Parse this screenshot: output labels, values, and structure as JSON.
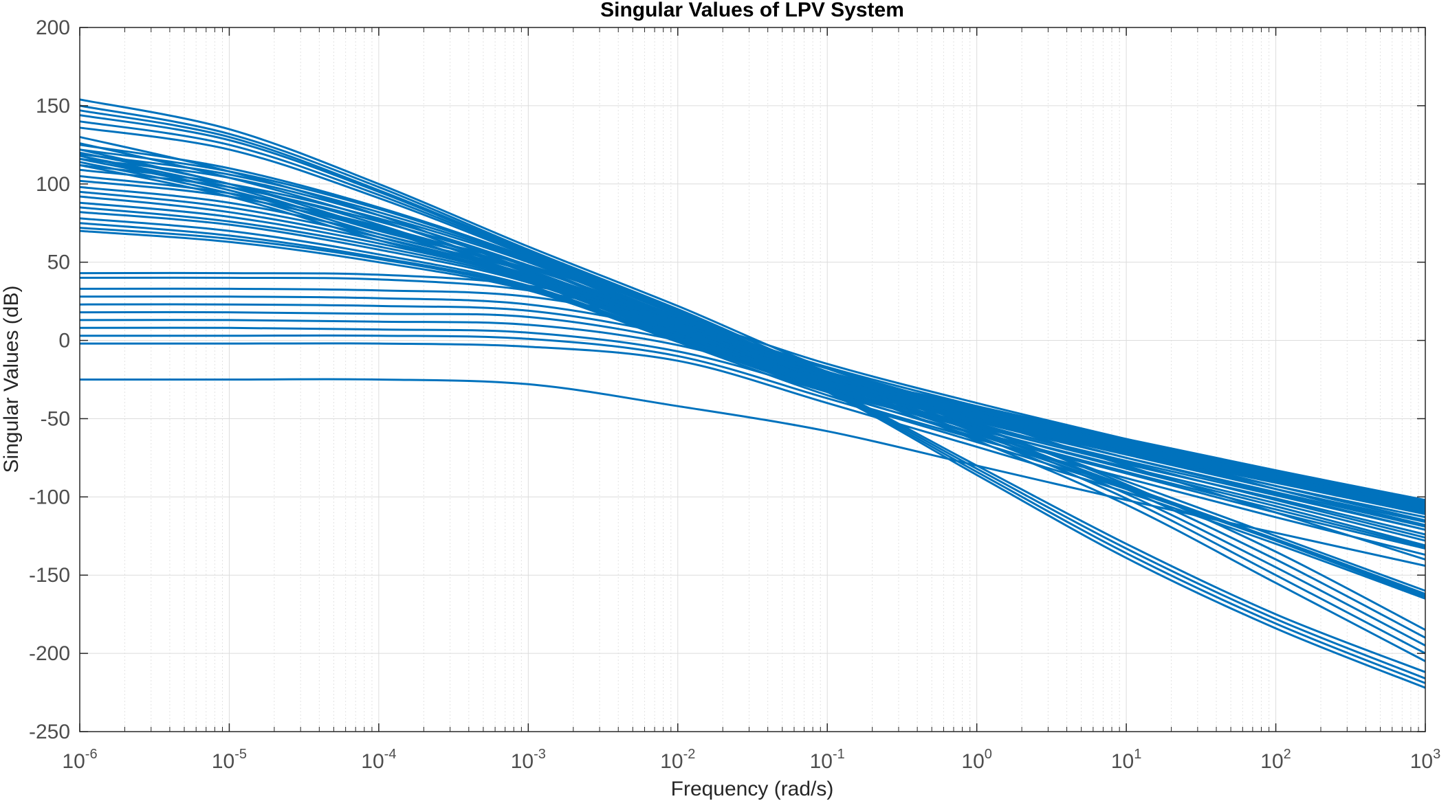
{
  "chart_data": {
    "type": "line",
    "title": "Singular Values of LPV System",
    "xlabel": "Frequency (rad/s)",
    "ylabel": "Singular Values (dB)",
    "xscale": "log",
    "xlim": [
      1e-06,
      1000
    ],
    "ylim": [
      -250,
      200
    ],
    "grid": true,
    "minor_grid": true,
    "line_color": "#0072BD",
    "x_ticks": [
      {
        "base": "10",
        "exp": "-6",
        "value": 1e-06
      },
      {
        "base": "10",
        "exp": "-5",
        "value": 1e-05
      },
      {
        "base": "10",
        "exp": "-4",
        "value": 0.0001
      },
      {
        "base": "10",
        "exp": "-3",
        "value": 0.001
      },
      {
        "base": "10",
        "exp": "-2",
        "value": 0.01
      },
      {
        "base": "10",
        "exp": "-1",
        "value": 0.1
      },
      {
        "base": "10",
        "exp": "0",
        "value": 1
      },
      {
        "base": "10",
        "exp": "1",
        "value": 10
      },
      {
        "base": "10",
        "exp": "2",
        "value": 100
      },
      {
        "base": "10",
        "exp": "3",
        "value": 1000
      }
    ],
    "y_ticks": [
      200,
      150,
      100,
      50,
      0,
      -50,
      -100,
      -150,
      -200,
      -250
    ],
    "x_sample": [
      1e-06,
      1e-05,
      0.0001,
      0.001,
      0.01,
      0.1,
      1,
      10,
      100,
      1000
    ],
    "series": [
      {
        "values": [
          154,
          135,
          100,
          60,
          22,
          -18,
          -45,
          -70,
          -93,
          -115
        ]
      },
      {
        "values": [
          150,
          132,
          98,
          58,
          20,
          -20,
          -47,
          -72,
          -95,
          -118
        ]
      },
      {
        "values": [
          147,
          130,
          96,
          57,
          19,
          -22,
          -50,
          -75,
          -98,
          -121
        ]
      },
      {
        "values": [
          144,
          128,
          95,
          56,
          18,
          -24,
          -53,
          -78,
          -102,
          -126
        ]
      },
      {
        "values": [
          140,
          125,
          93,
          55,
          17,
          -25,
          -56,
          -82,
          -106,
          -131
        ]
      },
      {
        "values": [
          136,
          122,
          91,
          54,
          16,
          -26,
          -58,
          -84,
          -108,
          -132
        ]
      },
      {
        "values": [
          125,
          110,
          85,
          53,
          15,
          -20,
          -42,
          -63,
          -83,
          -102
        ]
      },
      {
        "values": [
          122,
          108,
          84,
          52,
          14,
          -21,
          -43,
          -64,
          -84,
          -103
        ]
      },
      {
        "values": [
          119,
          106,
          82,
          51,
          13,
          -22,
          -44,
          -65,
          -85,
          -104
        ]
      },
      {
        "values": [
          116,
          104,
          80,
          50,
          12,
          -22,
          -45,
          -66,
          -86,
          -105
        ]
      },
      {
        "values": [
          112,
          100,
          78,
          48,
          11,
          -23,
          -45,
          -66,
          -86,
          -106
        ]
      },
      {
        "values": [
          109,
          98,
          76,
          47,
          10,
          -24,
          -46,
          -67,
          -87,
          -107
        ]
      },
      {
        "values": [
          105,
          94,
          73,
          45,
          9,
          -25,
          -47,
          -68,
          -88,
          -108
        ]
      },
      {
        "values": [
          102,
          92,
          71,
          44,
          8,
          -25,
          -47,
          -69,
          -89,
          -109
        ]
      },
      {
        "values": [
          98,
          88,
          68,
          42,
          7,
          -26,
          -48,
          -70,
          -90,
          -110
        ]
      },
      {
        "values": [
          95,
          85,
          66,
          41,
          6,
          -27,
          -49,
          -71,
          -91,
          -111
        ]
      },
      {
        "values": [
          92,
          82,
          64,
          40,
          5,
          -27,
          -50,
          -72,
          -93,
          -113
        ]
      },
      {
        "values": [
          88,
          79,
          62,
          39,
          4,
          -28,
          -51,
          -73,
          -95,
          -116
        ]
      },
      {
        "values": [
          85,
          76,
          60,
          38,
          3,
          -29,
          -52,
          -75,
          -97,
          -119
        ]
      },
      {
        "values": [
          82,
          74,
          58,
          37,
          2,
          -30,
          -54,
          -77,
          -99,
          -121
        ]
      },
      {
        "values": [
          78,
          70,
          55,
          35,
          1,
          -31,
          -55,
          -79,
          -101,
          -124
        ]
      },
      {
        "values": [
          75,
          67,
          53,
          34,
          0,
          -32,
          -57,
          -81,
          -104,
          -128
        ]
      },
      {
        "values": [
          72,
          65,
          52,
          33,
          0,
          -33,
          -60,
          -85,
          -110,
          -133
        ]
      },
      {
        "values": [
          70,
          63,
          50,
          32,
          -1,
          -35,
          -63,
          -88,
          -113,
          -137
        ]
      },
      {
        "values": [
          43,
          43,
          42,
          35,
          15,
          -15,
          -40,
          -63,
          -85,
          -107
        ]
      },
      {
        "values": [
          40,
          40,
          39,
          32,
          12,
          -17,
          -42,
          -65,
          -87,
          -109
        ]
      },
      {
        "values": [
          33,
          33,
          32,
          28,
          10,
          -18,
          -45,
          -70,
          -95,
          -119
        ]
      },
      {
        "values": [
          28,
          28,
          27,
          23,
          6,
          -21,
          -50,
          -80,
          -110,
          -140
        ]
      },
      {
        "values": [
          23,
          23,
          22,
          19,
          3,
          -23,
          -55,
          -90,
          -125,
          -160
        ]
      },
      {
        "values": [
          18,
          18,
          17,
          15,
          0,
          -26,
          -58,
          -93,
          -128,
          -164
        ]
      },
      {
        "values": [
          13,
          13,
          12,
          10,
          -3,
          -30,
          -60,
          -93,
          -127,
          -162
        ]
      },
      {
        "values": [
          8,
          8,
          7,
          5,
          -7,
          -33,
          -62,
          -94,
          -127,
          -162
        ]
      },
      {
        "values": [
          3,
          3,
          3,
          1,
          -10,
          -37,
          -65,
          -95,
          -128,
          -163
        ]
      },
      {
        "values": [
          -2,
          -2,
          -2,
          -4,
          -13,
          -40,
          -68,
          -97,
          -130,
          -165
        ]
      },
      {
        "values": [
          -25,
          -25,
          -25,
          -28,
          -42,
          -58,
          -80,
          -102,
          -123,
          -144
        ]
      },
      {
        "values": [
          120,
          100,
          72,
          48,
          15,
          -20,
          -55,
          -92,
          -135,
          -185
        ]
      },
      {
        "values": [
          118,
          98,
          70,
          46,
          13,
          -22,
          -57,
          -95,
          -140,
          -190
        ]
      },
      {
        "values": [
          116,
          96,
          68,
          44,
          11,
          -24,
          -59,
          -98,
          -145,
          -195
        ]
      },
      {
        "values": [
          114,
          94,
          66,
          42,
          9,
          -26,
          -61,
          -101,
          -150,
          -200
        ]
      },
      {
        "values": [
          112,
          92,
          64,
          40,
          7,
          -28,
          -64,
          -105,
          -155,
          -205
        ]
      },
      {
        "values": [
          130,
          108,
          80,
          45,
          10,
          -30,
          -80,
          -130,
          -175,
          -212
        ]
      },
      {
        "values": [
          126,
          104,
          77,
          43,
          8,
          -31,
          -82,
          -133,
          -178,
          -216
        ]
      },
      {
        "values": [
          122,
          100,
          74,
          41,
          6,
          -32,
          -84,
          -136,
          -181,
          -219
        ]
      },
      {
        "values": [
          118,
          96,
          71,
          39,
          4,
          -33,
          -86,
          -139,
          -184,
          -222
        ]
      }
    ]
  }
}
